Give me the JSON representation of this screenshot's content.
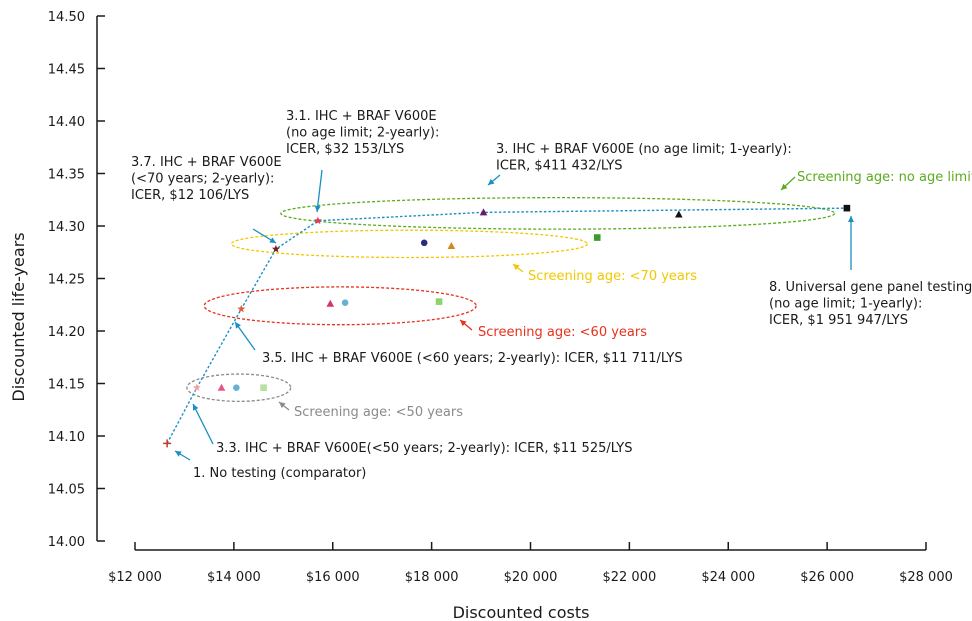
{
  "chart_data": {
    "type": "scatter",
    "xlabel": "Discounted costs",
    "ylabel": "Discounted life-years",
    "xlim": [
      12000,
      28000
    ],
    "ylim": [
      14.0,
      14.5
    ],
    "x_ticks": [
      12000,
      14000,
      16000,
      18000,
      20000,
      22000,
      24000,
      26000,
      28000
    ],
    "x_tick_labels": [
      "$12 000",
      "$14 000",
      "$16 000",
      "$18 000",
      "$20 000",
      "$22 000",
      "$24 000",
      "$26 000",
      "$28 000"
    ],
    "y_ticks": [
      14.0,
      14.05,
      14.1,
      14.15,
      14.2,
      14.25,
      14.3,
      14.35,
      14.4,
      14.45,
      14.5
    ],
    "y_tick_labels": [
      "14.00",
      "14.05",
      "14.10",
      "14.15",
      "14.20",
      "14.25",
      "14.30",
      "14.35",
      "14.40",
      "14.45",
      "14.50"
    ],
    "grid": false,
    "points": [
      {
        "x": 12650,
        "y": 14.093,
        "shape": "plus",
        "color": "#c0392b"
      },
      {
        "x": 13250,
        "y": 14.146,
        "shape": "star",
        "color": "#f4a3a3"
      },
      {
        "x": 13750,
        "y": 14.146,
        "shape": "triangle",
        "color": "#e75480"
      },
      {
        "x": 14050,
        "y": 14.146,
        "shape": "circle",
        "color": "#6ab0d4"
      },
      {
        "x": 14600,
        "y": 14.146,
        "shape": "square",
        "color": "#b8e0a0"
      },
      {
        "x": 14150,
        "y": 14.221,
        "shape": "star",
        "color": "#e05c3a"
      },
      {
        "x": 15950,
        "y": 14.226,
        "shape": "triangle",
        "color": "#d6336c"
      },
      {
        "x": 16250,
        "y": 14.227,
        "shape": "circle",
        "color": "#6ab0d4"
      },
      {
        "x": 18150,
        "y": 14.228,
        "shape": "square",
        "color": "#8fd16a"
      },
      {
        "x": 14850,
        "y": 14.278,
        "shape": "star",
        "color": "#7a1a1a"
      },
      {
        "x": 17850,
        "y": 14.284,
        "shape": "circle",
        "color": "#2a2d7a"
      },
      {
        "x": 18400,
        "y": 14.281,
        "shape": "triangle",
        "color": "#d08a1a"
      },
      {
        "x": 21350,
        "y": 14.289,
        "shape": "square",
        "color": "#3a9a2a"
      },
      {
        "x": 15700,
        "y": 14.305,
        "shape": "star",
        "color": "#e8355a"
      },
      {
        "x": 19050,
        "y": 14.313,
        "shape": "triangle",
        "color": "#6a1a6a"
      },
      {
        "x": 23000,
        "y": 14.311,
        "shape": "triangle",
        "color": "#111111"
      },
      {
        "x": 26400,
        "y": 14.317,
        "shape": "square",
        "color": "#111111"
      }
    ],
    "frontier": [
      {
        "x": 12650,
        "y": 14.093
      },
      {
        "x": 13250,
        "y": 14.146
      },
      {
        "x": 14150,
        "y": 14.221
      },
      {
        "x": 14850,
        "y": 14.278
      },
      {
        "x": 15700,
        "y": 14.305
      },
      {
        "x": 19050,
        "y": 14.313
      },
      {
        "x": 26400,
        "y": 14.317
      }
    ],
    "frontier_color": "#1a8fc4",
    "groups": [
      {
        "label": "Screening age: no age limit",
        "color": "#5aab1e",
        "cx": 20550,
        "cy": 14.312,
        "rx": 5600,
        "ry": 0.015
      },
      {
        "label": "Screening age: <70 years",
        "color": "#f0c800",
        "cx": 17550,
        "cy": 14.283,
        "rx": 3600,
        "ry": 0.013
      },
      {
        "label": "Screening age: <60 years",
        "color": "#e8301c",
        "cx": 16150,
        "cy": 14.224,
        "rx": 2750,
        "ry": 0.018
      },
      {
        "label": "Screening age: <50 years",
        "color": "#8a8a8a",
        "cx": 14100,
        "cy": 14.146,
        "rx": 1050,
        "ry": 0.013
      }
    ],
    "annotations": [
      {
        "lines": [
          "1. No testing (comparator)"
        ],
        "color": "#1a1a1a"
      },
      {
        "lines": [
          "3.3. IHC + BRAF V600E(<50 years; 2-yearly): ICER, $11 525/LYS"
        ],
        "color": "#1a1a1a"
      },
      {
        "lines": [
          "3.5. IHC + BRAF V600E (<60 years; 2-yearly): ICER, $11 711/LYS"
        ],
        "color": "#1a1a1a"
      },
      {
        "lines": [
          "3.7. IHC + BRAF V600E",
          "(<70 years; 2-yearly):",
          "ICER, $12 106/LYS"
        ],
        "color": "#1a1a1a"
      },
      {
        "lines": [
          "3.1. IHC + BRAF V600E",
          "(no age limit; 2-yearly):",
          "ICER, $32 153/LYS"
        ],
        "color": "#1a1a1a"
      },
      {
        "lines": [
          "3. IHC + BRAF V600E (no age limit; 1-yearly):",
          "ICER, $411 432/LYS"
        ],
        "color": "#1a1a1a"
      },
      {
        "lines": [
          "8. Universal gene panel testing",
          "(no age limit; 1-yearly):",
          "ICER, $1 951 947/LYS"
        ],
        "color": "#1a1a1a"
      }
    ]
  }
}
